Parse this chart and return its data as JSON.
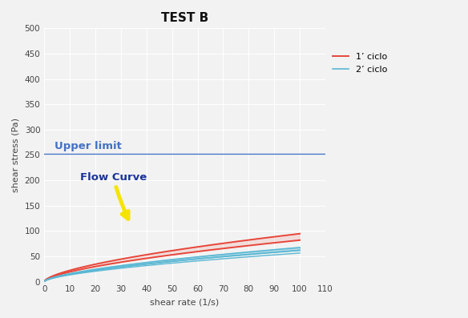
{
  "title": "TEST B",
  "xlabel": "shear rate (1/s)",
  "ylabel": "shear stress (Pa)",
  "xlim": [
    0,
    110
  ],
  "ylim": [
    0,
    500
  ],
  "xticks": [
    0,
    10,
    20,
    30,
    40,
    50,
    60,
    70,
    80,
    90,
    100,
    110
  ],
  "yticks": [
    0,
    50,
    100,
    150,
    200,
    250,
    300,
    350,
    400,
    450,
    500
  ],
  "upper_limit_y": 252,
  "upper_limit_label": "Upper limit",
  "flow_curve_label": "Flow Curve",
  "legend_1": "1’ ciclo",
  "legend_2": "2’ ciclo",
  "color_red": "#e8463a",
  "color_cyan": "#5ab8d4",
  "color_upper_limit": "#4472c4",
  "background_color": "#f2f2f2",
  "grid_color": "#ffffff",
  "annotation_arrow_color": "#f5e400",
  "annotation_text_color": "#1a3399",
  "title_fontsize": 11,
  "label_fontsize": 8,
  "tick_fontsize": 7.5,
  "k1_up": 5.2,
  "n1_up": 0.63,
  "k1_down": 4.5,
  "n1_down": 0.63,
  "k2a_up": 3.7,
  "n2a_up": 0.63,
  "k2a_down": 3.4,
  "n2a_down": 0.63,
  "k2b_up": 3.4,
  "n2b_up": 0.63,
  "k2b_down": 3.1,
  "n2b_down": 0.63
}
